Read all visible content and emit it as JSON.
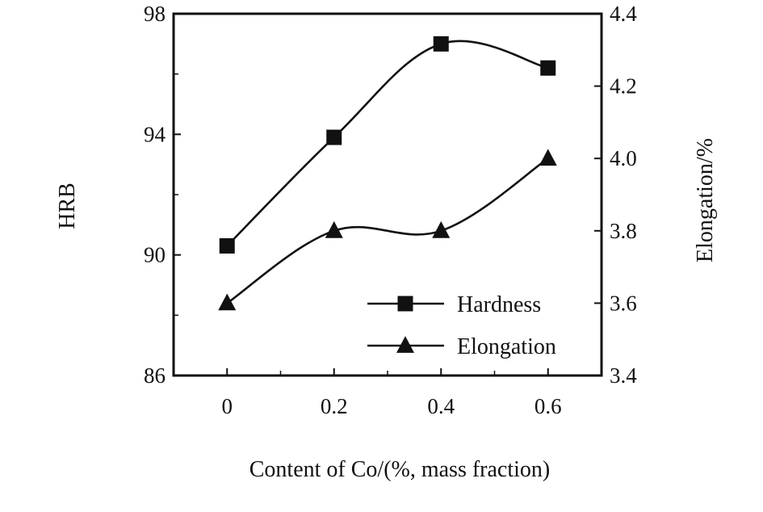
{
  "chart_data": {
    "type": "line",
    "xlabel": "Content of Co/(%, mass fraction)",
    "x": [
      0,
      0.2,
      0.4,
      0.6
    ],
    "x_ticks": [
      "0",
      "0.2",
      "0.4",
      "0.6"
    ],
    "xlim": [
      -0.1,
      0.7
    ],
    "y_left": {
      "label": "HRB",
      "lim": [
        86,
        98
      ],
      "ticks": [
        "86",
        "90",
        "94",
        "98"
      ]
    },
    "y_right": {
      "label": "Elongation/%",
      "lim": [
        3.4,
        4.4
      ],
      "ticks": [
        "3.4",
        "3.6",
        "3.8",
        "4.0",
        "4.2",
        "4.4"
      ]
    },
    "series": [
      {
        "name": "Hardness",
        "axis": "left",
        "marker": "square",
        "values": [
          90.3,
          93.9,
          97.0,
          96.2
        ]
      },
      {
        "name": "Elongation",
        "axis": "right",
        "marker": "triangle",
        "values": [
          3.6,
          3.8,
          3.8,
          4.0
        ]
      }
    ],
    "legend": "bottom-right",
    "grid": false,
    "colors": {
      "line": "#111111",
      "background": "#ffffff"
    }
  }
}
